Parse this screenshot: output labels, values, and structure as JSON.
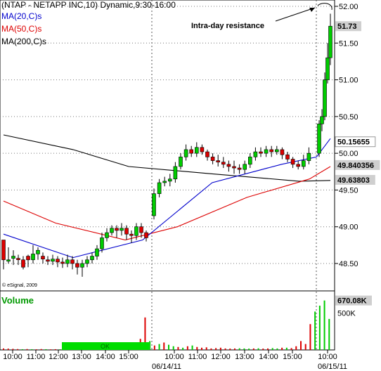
{
  "header": {
    "title": "(NTAP - NETAPP INC,10) Dynamic,9:30-16:00",
    "ma20_label": "MA(20,C)s",
    "ma50_label": "MA(50,C)s",
    "ma200_label": "MA(200,C)s",
    "watermark": "© eSignal, 2009",
    "annotation": "Intra-day resistance"
  },
  "colors": {
    "up_candle": "#00cc00",
    "down_candle": "#dd0000",
    "ma20": "#0000cc",
    "ma50": "#dd0000",
    "ma200": "#000000",
    "volume_up": "#00cc00",
    "volume_down": "#dd0000",
    "grid": "#666666"
  },
  "chart_data": {
    "type": "candlestick",
    "ylim": [
      48.0,
      52.0
    ],
    "yticks": [
      "52.00",
      "51.50",
      "51.00",
      "50.50",
      "50.00",
      "49.50",
      "49.00",
      "48.50"
    ],
    "price_tags": [
      {
        "label": "51.73",
        "value": 51.73,
        "style": "filled"
      },
      {
        "label": "50.15655",
        "value": 50.157,
        "style": "outline"
      },
      {
        "label": "49.840356",
        "value": 49.84,
        "style": "filled"
      },
      {
        "label": "49.63803",
        "value": 49.638,
        "style": "filled"
      }
    ],
    "xticks": [
      "10:00",
      "11:00",
      "12:00",
      "13:00",
      "14:00",
      "15:00",
      "10:00",
      "11:00",
      "12:00",
      "13:00",
      "14:00",
      "15:00",
      "10:00"
    ],
    "date_labels": [
      "06/14/11",
      "06/15/11"
    ],
    "candles_day1": [
      [
        48.82,
        48.55,
        48.8,
        48.42,
        "d"
      ],
      [
        48.55,
        48.54,
        48.72,
        48.5,
        "u"
      ],
      [
        48.6,
        48.57,
        48.68,
        48.48,
        "u"
      ],
      [
        48.57,
        48.56,
        48.62,
        48.48,
        "d"
      ],
      [
        48.55,
        48.45,
        48.6,
        48.42,
        "d"
      ],
      [
        48.55,
        48.6,
        48.62,
        48.45,
        "d"
      ],
      [
        48.55,
        48.63,
        48.75,
        48.5,
        "u"
      ],
      [
        48.63,
        48.68,
        48.72,
        48.55,
        "u"
      ],
      [
        48.6,
        48.56,
        48.65,
        48.5,
        "d"
      ],
      [
        48.55,
        48.53,
        48.6,
        48.48,
        "d"
      ],
      [
        48.53,
        48.56,
        48.62,
        48.48,
        "u"
      ],
      [
        48.56,
        48.52,
        48.6,
        48.45,
        "d"
      ],
      [
        48.52,
        48.5,
        48.58,
        48.44,
        "d"
      ],
      [
        48.5,
        48.55,
        48.62,
        48.45,
        "u"
      ],
      [
        48.55,
        48.5,
        48.6,
        48.42,
        "d"
      ],
      [
        48.5,
        48.45,
        48.55,
        48.35,
        "d"
      ],
      [
        48.45,
        48.5,
        48.55,
        48.32,
        "u"
      ],
      [
        48.5,
        48.55,
        48.6,
        48.45,
        "u"
      ],
      [
        48.55,
        48.6,
        48.65,
        48.5,
        "u"
      ],
      [
        48.6,
        48.7,
        48.75,
        48.55,
        "u"
      ],
      [
        48.7,
        48.85,
        48.92,
        48.65,
        "u"
      ],
      [
        48.85,
        48.92,
        48.98,
        48.8,
        "u"
      ],
      [
        48.92,
        48.98,
        49.02,
        48.88,
        "u"
      ],
      [
        48.98,
        48.95,
        49.02,
        48.85,
        "d"
      ],
      [
        48.95,
        48.98,
        49.05,
        48.88,
        "u"
      ],
      [
        48.98,
        48.9,
        49.02,
        48.82,
        "d"
      ],
      [
        48.9,
        48.88,
        48.95,
        48.78,
        "d"
      ],
      [
        48.88,
        49.0,
        49.05,
        48.82,
        "u"
      ],
      [
        49.0,
        48.92,
        49.05,
        48.85,
        "d"
      ],
      [
        48.92,
        48.85,
        48.95,
        48.8,
        "d"
      ]
    ],
    "candles_day2": [
      [
        49.15,
        49.45,
        49.52,
        49.1,
        "u"
      ],
      [
        49.45,
        49.6,
        49.65,
        49.4,
        "u"
      ],
      [
        49.6,
        49.62,
        49.68,
        49.55,
        "u"
      ],
      [
        49.62,
        49.65,
        49.72,
        49.55,
        "u"
      ],
      [
        49.65,
        49.82,
        49.88,
        49.6,
        "u"
      ],
      [
        49.82,
        49.95,
        50.0,
        49.78,
        "u"
      ],
      [
        49.95,
        50.05,
        50.12,
        49.9,
        "u"
      ],
      [
        50.05,
        50.0,
        50.1,
        49.95,
        "d"
      ],
      [
        50.0,
        50.08,
        50.15,
        49.95,
        "u"
      ],
      [
        50.08,
        50.02,
        50.12,
        49.98,
        "d"
      ],
      [
        50.02,
        49.95,
        50.05,
        49.9,
        "d"
      ],
      [
        49.95,
        49.9,
        50.0,
        49.85,
        "d"
      ],
      [
        49.9,
        49.88,
        49.98,
        49.82,
        "d"
      ],
      [
        49.88,
        49.85,
        49.95,
        49.8,
        "d"
      ],
      [
        49.85,
        49.82,
        49.9,
        49.75,
        "d"
      ],
      [
        49.82,
        49.8,
        49.9,
        49.72,
        "d"
      ],
      [
        49.8,
        49.78,
        49.85,
        49.72,
        "d"
      ],
      [
        49.78,
        49.85,
        49.9,
        49.72,
        "u"
      ],
      [
        49.85,
        49.95,
        50.0,
        49.8,
        "u"
      ],
      [
        49.95,
        50.02,
        50.08,
        49.9,
        "u"
      ],
      [
        50.02,
        50.0,
        50.08,
        49.95,
        "d"
      ],
      [
        50.0,
        50.05,
        50.1,
        49.95,
        "u"
      ],
      [
        50.05,
        50.02,
        50.1,
        49.95,
        "d"
      ],
      [
        50.02,
        50.05,
        50.1,
        49.98,
        "u"
      ],
      [
        50.05,
        49.98,
        50.08,
        49.92,
        "d"
      ],
      [
        49.98,
        49.92,
        50.02,
        49.88,
        "d"
      ],
      [
        49.92,
        49.85,
        49.95,
        49.8,
        "d"
      ],
      [
        49.85,
        49.82,
        49.9,
        49.78,
        "d"
      ],
      [
        49.82,
        49.9,
        49.98,
        49.78,
        "u"
      ],
      [
        49.9,
        50.0,
        50.08,
        49.85,
        "u"
      ]
    ],
    "candles_day3": [
      [
        50.0,
        50.4,
        50.45,
        49.95,
        "u"
      ],
      [
        50.4,
        50.5,
        50.6,
        50.3,
        "u"
      ],
      [
        50.5,
        51.0,
        51.1,
        50.45,
        "u"
      ],
      [
        51.0,
        51.3,
        51.5,
        50.95,
        "u"
      ],
      [
        51.3,
        51.73,
        51.9,
        51.2,
        "u"
      ]
    ],
    "ma20": [
      [
        0,
        48.9
      ],
      [
        20,
        48.58
      ],
      [
        40,
        48.82
      ],
      [
        60,
        49.6
      ],
      [
        80,
        49.85
      ],
      [
        90,
        49.95
      ],
      [
        94,
        50.2
      ]
    ],
    "ma50": [
      [
        0,
        49.35
      ],
      [
        15,
        49.05
      ],
      [
        35,
        48.82
      ],
      [
        50,
        49.0
      ],
      [
        70,
        49.4
      ],
      [
        88,
        49.65
      ],
      [
        94,
        49.82
      ]
    ],
    "ma200": [
      [
        0,
        50.25
      ],
      [
        20,
        50.05
      ],
      [
        36,
        49.82
      ],
      [
        60,
        49.72
      ],
      [
        85,
        49.62
      ],
      [
        94,
        49.63
      ]
    ],
    "volume": {
      "ylim": [
        0,
        800
      ],
      "labels": [
        "670.08K",
        "500K"
      ],
      "ok_label": "OK",
      "bars": [
        [
          20,
          "d"
        ],
        [
          18,
          "d"
        ],
        [
          15,
          "d"
        ],
        [
          12,
          "d"
        ],
        [
          10,
          "u"
        ],
        [
          12,
          "d"
        ],
        [
          10,
          "u"
        ],
        [
          8,
          "d"
        ],
        [
          12,
          "d"
        ],
        [
          10,
          "u"
        ],
        [
          8,
          "d"
        ],
        [
          10,
          "d"
        ],
        [
          9,
          "u"
        ],
        [
          8,
          "d"
        ],
        [
          10,
          "d"
        ],
        [
          12,
          "u"
        ],
        [
          10,
          "u"
        ],
        [
          8,
          "d"
        ],
        [
          9,
          "u"
        ],
        [
          11,
          "u"
        ],
        [
          8,
          "u"
        ],
        [
          10,
          "u"
        ],
        [
          9,
          "d"
        ],
        [
          12,
          "u"
        ],
        [
          10,
          "d"
        ],
        [
          8,
          "d"
        ],
        [
          12,
          "u"
        ],
        [
          18,
          "d"
        ],
        [
          80,
          "d"
        ],
        [
          150,
          "d"
        ],
        [
          440,
          "d"
        ],
        [
          120,
          "u"
        ],
        [
          60,
          "d"
        ],
        [
          80,
          "u"
        ],
        [
          100,
          "d"
        ],
        [
          70,
          "u"
        ],
        [
          50,
          "u"
        ],
        [
          40,
          "d"
        ],
        [
          30,
          "u"
        ],
        [
          50,
          "d"
        ],
        [
          60,
          "u"
        ],
        [
          40,
          "d"
        ],
        [
          30,
          "d"
        ],
        [
          35,
          "d"
        ],
        [
          20,
          "d"
        ],
        [
          25,
          "d"
        ],
        [
          30,
          "d"
        ],
        [
          20,
          "d"
        ],
        [
          18,
          "d"
        ],
        [
          20,
          "d"
        ],
        [
          22,
          "u"
        ],
        [
          20,
          "u"
        ],
        [
          18,
          "u"
        ],
        [
          20,
          "d"
        ],
        [
          22,
          "u"
        ],
        [
          18,
          "d"
        ],
        [
          20,
          "d"
        ],
        [
          25,
          "u"
        ],
        [
          20,
          "u"
        ],
        [
          30,
          "d"
        ],
        [
          30,
          "u"
        ],
        [
          25,
          "d"
        ],
        [
          50,
          "d"
        ],
        [
          120,
          "d"
        ],
        [
          80,
          "d"
        ],
        [
          350,
          "d"
        ],
        [
          520,
          "u"
        ],
        [
          600,
          "u"
        ],
        [
          670,
          "u"
        ],
        [
          420,
          "u"
        ]
      ]
    }
  }
}
